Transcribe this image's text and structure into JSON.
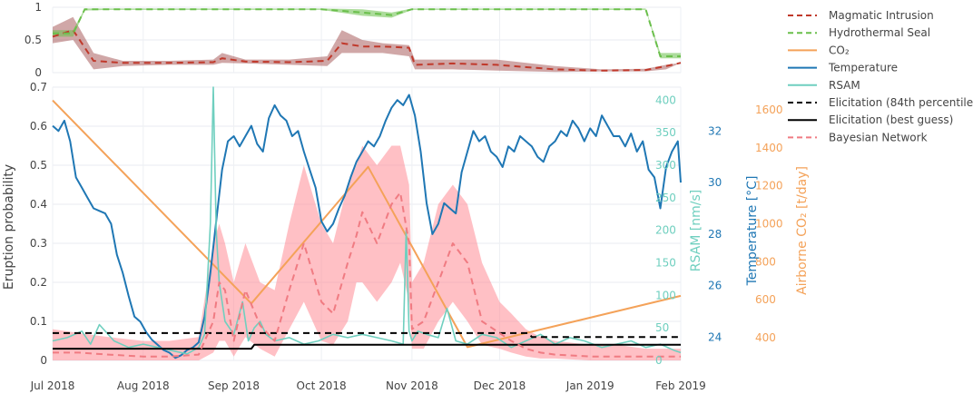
{
  "chart_data": [
    {
      "type": "line",
      "panel": "top",
      "ylim": [
        0,
        1
      ],
      "yticks": [
        "0",
        "0.5",
        "1"
      ],
      "series": [
        {
          "name": "Magmatic Intrusion",
          "color": "#c0392b",
          "dash": "dashed",
          "x": [
            "2018-07-01",
            "2018-07-08",
            "2018-07-15",
            "2018-07-25",
            "2018-08-10",
            "2018-08-25",
            "2018-08-28",
            "2018-09-05",
            "2018-09-20",
            "2018-10-03",
            "2018-10-08",
            "2018-10-15",
            "2018-10-22",
            "2018-10-31",
            "2018-11-02",
            "2018-11-15",
            "2018-11-30",
            "2018-12-20",
            "2019-01-05",
            "2019-01-20",
            "2019-01-27",
            "2019-02-01"
          ],
          "y": [
            0.55,
            0.65,
            0.18,
            0.15,
            0.15,
            0.16,
            0.22,
            0.17,
            0.16,
            0.18,
            0.45,
            0.4,
            0.4,
            0.38,
            0.12,
            0.14,
            0.12,
            0.05,
            0.03,
            0.04,
            0.1,
            0.15
          ],
          "band_low": [
            0.45,
            0.5,
            0.05,
            0.1,
            0.12,
            0.12,
            0.15,
            0.14,
            0.12,
            0.1,
            0.3,
            0.3,
            0.3,
            0.25,
            0.05,
            0.05,
            0.03,
            0.01,
            0.02,
            0.02,
            0.05,
            0.15
          ],
          "band_high": [
            0.7,
            0.85,
            0.3,
            0.18,
            0.18,
            0.2,
            0.3,
            0.2,
            0.2,
            0.25,
            0.65,
            0.5,
            0.45,
            0.42,
            0.2,
            0.2,
            0.2,
            0.1,
            0.05,
            0.06,
            0.12,
            0.15
          ]
        },
        {
          "name": "Hydrothermal Seal",
          "color": "#6abf4b",
          "dash": "dashed",
          "x": [
            "2018-07-01",
            "2018-07-08",
            "2018-07-12",
            "2018-07-20",
            "2018-09-01",
            "2018-10-01",
            "2018-10-15",
            "2018-10-25",
            "2018-11-01",
            "2018-12-01",
            "2019-01-20",
            "2019-01-25",
            "2019-02-01"
          ],
          "y": [
            0.6,
            0.6,
            0.97,
            0.97,
            0.97,
            0.97,
            0.92,
            0.88,
            0.97,
            0.97,
            0.97,
            0.25,
            0.25
          ],
          "band_low": [
            0.55,
            0.55,
            0.95,
            0.96,
            0.96,
            0.96,
            0.87,
            0.84,
            0.96,
            0.96,
            0.96,
            0.22,
            0.22
          ],
          "band_high": [
            0.65,
            0.65,
            0.98,
            0.98,
            0.98,
            0.98,
            0.97,
            0.92,
            0.98,
            0.98,
            0.98,
            0.3,
            0.3
          ]
        }
      ]
    },
    {
      "type": "line",
      "panel": "bottom",
      "xlim": [
        "2018-07-01",
        "2019-02-01"
      ],
      "xticks": [
        "Jul 2018",
        "Aug 2018",
        "Sep 2018",
        "Oct 2018",
        "Nov 2018",
        "Dec 2018",
        "Jan 2019",
        "Feb 2019"
      ],
      "ylabel": "Eruption probability",
      "ylim": [
        0,
        0.7
      ],
      "yticks": [
        "0",
        "0.1",
        "0.2",
        "0.3",
        "0.4",
        "0.5",
        "0.6",
        "0.7"
      ],
      "rsam_axis": {
        "label": "RSAM [nm/s]",
        "ylim": [
          0,
          420
        ],
        "ticks": [
          "0",
          "50",
          "100",
          "150",
          "200",
          "250",
          "300",
          "350",
          "400"
        ]
      },
      "temp_axis": {
        "label": "Temperature [°C]",
        "ylim": [
          23.1,
          33.7
        ],
        "ticks": [
          "24",
          "26",
          "28",
          "30",
          "32"
        ]
      },
      "co2_axis": {
        "label": "Airborne CO₂ [t/day]",
        "ylim": [
          280,
          1720
        ],
        "ticks": [
          "400",
          "600",
          "800",
          "1000",
          "1200",
          "1400",
          "1600"
        ]
      },
      "series": [
        {
          "name": "CO₂",
          "color": "#f4a259",
          "axis": "co2",
          "x": [
            "2018-07-01",
            "2018-09-07",
            "2018-10-17",
            "2018-11-20",
            "2019-02-01"
          ],
          "y": [
            1650,
            580,
            1300,
            350,
            620
          ]
        },
        {
          "name": "Temperature",
          "color": "#1f77b4",
          "axis": "temp",
          "x": [
            "2018-07-01",
            "2018-07-03",
            "2018-07-05",
            "2018-07-07",
            "2018-07-09",
            "2018-07-11",
            "2018-07-13",
            "2018-07-15",
            "2018-07-17",
            "2018-07-19",
            "2018-07-21",
            "2018-07-23",
            "2018-07-25",
            "2018-07-27",
            "2018-07-29",
            "2018-07-31",
            "2018-08-02",
            "2018-08-04",
            "2018-08-06",
            "2018-08-08",
            "2018-08-10",
            "2018-08-12",
            "2018-08-14",
            "2018-08-16",
            "2018-08-18",
            "2018-08-20",
            "2018-08-22",
            "2018-08-24",
            "2018-08-26",
            "2018-08-28",
            "2018-08-30",
            "2018-09-01",
            "2018-09-03",
            "2018-09-05",
            "2018-09-07",
            "2018-09-09",
            "2018-09-11",
            "2018-09-13",
            "2018-09-15",
            "2018-09-17",
            "2018-09-19",
            "2018-09-21",
            "2018-09-23",
            "2018-09-25",
            "2018-09-27",
            "2018-09-29",
            "2018-10-01",
            "2018-10-03",
            "2018-10-05",
            "2018-10-07",
            "2018-10-09",
            "2018-10-11",
            "2018-10-13",
            "2018-10-15",
            "2018-10-17",
            "2018-10-19",
            "2018-10-21",
            "2018-10-23",
            "2018-10-25",
            "2018-10-27",
            "2018-10-29",
            "2018-10-31",
            "2018-11-02",
            "2018-11-04",
            "2018-11-06",
            "2018-11-08",
            "2018-11-10",
            "2018-11-12",
            "2018-11-14",
            "2018-11-16",
            "2018-11-18",
            "2018-11-20",
            "2018-11-22",
            "2018-11-24",
            "2018-11-26",
            "2018-11-28",
            "2018-11-30",
            "2018-12-02",
            "2018-12-04",
            "2018-12-06",
            "2018-12-08",
            "2018-12-10",
            "2018-12-12",
            "2018-12-14",
            "2018-12-16",
            "2018-12-18",
            "2018-12-20",
            "2018-12-22",
            "2018-12-24",
            "2018-12-26",
            "2018-12-28",
            "2018-12-30",
            "2019-01-01",
            "2019-01-03",
            "2019-01-05",
            "2019-01-07",
            "2019-01-09",
            "2019-01-11",
            "2019-01-13",
            "2019-01-15",
            "2019-01-17",
            "2019-01-19",
            "2019-01-21",
            "2019-01-23",
            "2019-01-25",
            "2019-01-27",
            "2019-01-29",
            "2019-01-31",
            "2019-02-01"
          ],
          "y": [
            32.2,
            32,
            32.4,
            31.6,
            30.2,
            29.8,
            29.4,
            29,
            28.9,
            28.8,
            28.4,
            27.2,
            26.5,
            25.6,
            24.8,
            24.6,
            24.2,
            23.9,
            23.7,
            23.5,
            23.4,
            23.2,
            23.3,
            23.5,
            23.6,
            23.8,
            24.8,
            26.5,
            28.5,
            30.5,
            31.6,
            31.8,
            31.4,
            31.8,
            32.2,
            31.5,
            31.2,
            32.5,
            33.0,
            32.6,
            32.4,
            31.8,
            32.0,
            31.2,
            30.5,
            29.8,
            28.5,
            28.1,
            28.4,
            29.0,
            29.5,
            30.2,
            30.8,
            31.2,
            31.6,
            31.4,
            31.8,
            32.4,
            32.9,
            33.2,
            33.0,
            33.4,
            32.6,
            31.2,
            29.2,
            28.0,
            28.4,
            29.2,
            29.0,
            28.8,
            30.4,
            31.2,
            32.0,
            31.6,
            31.8,
            31.2,
            31.0,
            30.6,
            31.4,
            31.2,
            31.8,
            31.6,
            31.4,
            31.0,
            30.8,
            31.4,
            31.6,
            32.0,
            31.8,
            32.4,
            32.1,
            31.6,
            32.1,
            31.8,
            32.6,
            32.2,
            31.8,
            31.8,
            31.4,
            31.9,
            31.2,
            31.6,
            30.5,
            30.2,
            29.0,
            30.6,
            31.2,
            31.6,
            30.0
          ]
        },
        {
          "name": "RSAM",
          "color": "#6fcfbf",
          "axis": "rsam",
          "x": [
            "2018-07-01",
            "2018-07-06",
            "2018-07-11",
            "2018-07-14",
            "2018-07-17",
            "2018-07-22",
            "2018-07-27",
            "2018-08-01",
            "2018-08-06",
            "2018-08-11",
            "2018-08-16",
            "2018-08-20",
            "2018-08-22",
            "2018-08-24",
            "2018-08-25",
            "2018-08-26",
            "2018-08-27",
            "2018-08-29",
            "2018-09-01",
            "2018-09-04",
            "2018-09-06",
            "2018-09-08",
            "2018-09-10",
            "2018-09-12",
            "2018-09-15",
            "2018-09-20",
            "2018-09-25",
            "2018-09-30",
            "2018-10-05",
            "2018-10-10",
            "2018-10-15",
            "2018-10-20",
            "2018-10-25",
            "2018-10-29",
            "2018-10-30",
            "2018-10-31",
            "2018-11-01",
            "2018-11-03",
            "2018-11-06",
            "2018-11-10",
            "2018-11-13",
            "2018-11-16",
            "2018-11-20",
            "2018-11-25",
            "2018-11-30",
            "2018-12-05",
            "2018-12-10",
            "2018-12-15",
            "2018-12-20",
            "2018-12-25",
            "2018-12-30",
            "2019-01-05",
            "2019-01-10",
            "2019-01-15",
            "2019-01-20",
            "2019-01-25",
            "2019-01-30",
            "2019-02-01"
          ],
          "y": [
            30,
            35,
            45,
            25,
            55,
            30,
            20,
            25,
            20,
            15,
            10,
            20,
            40,
            210,
            420,
            200,
            120,
            60,
            40,
            90,
            30,
            50,
            60,
            40,
            30,
            35,
            25,
            30,
            40,
            35,
            40,
            35,
            30,
            25,
            200,
            45,
            30,
            45,
            40,
            35,
            80,
            30,
            25,
            40,
            35,
            20,
            30,
            40,
            25,
            35,
            30,
            20,
            25,
            30,
            20,
            25,
            15,
            12
          ]
        },
        {
          "name": "Elicitation (84th percentile)",
          "color": "#000000",
          "dash": "dashed",
          "x": [
            "2018-07-01",
            "2018-12-11",
            "2018-12-12",
            "2019-02-01"
          ],
          "y": [
            0.07,
            0.07,
            0.06,
            0.06
          ]
        },
        {
          "name": "Elicitation (best guess)",
          "color": "#000000",
          "x": [
            "2018-07-01",
            "2018-09-07",
            "2018-09-08",
            "2019-02-01"
          ],
          "y": [
            0.03,
            0.03,
            0.04,
            0.04
          ]
        },
        {
          "name": "Bayesian Network",
          "color": "#f07b82",
          "dash": "dashed",
          "x": [
            "2018-07-01",
            "2018-07-10",
            "2018-07-20",
            "2018-08-01",
            "2018-08-10",
            "2018-08-20",
            "2018-08-25",
            "2018-08-27",
            "2018-08-29",
            "2018-09-01",
            "2018-09-05",
            "2018-09-10",
            "2018-09-15",
            "2018-09-20",
            "2018-09-25",
            "2018-10-01",
            "2018-10-05",
            "2018-10-10",
            "2018-10-13",
            "2018-10-15",
            "2018-10-20",
            "2018-10-25",
            "2018-10-28",
            "2018-10-31",
            "2018-11-01",
            "2018-11-05",
            "2018-11-10",
            "2018-11-15",
            "2018-11-20",
            "2018-11-25",
            "2018-12-01",
            "2018-12-05",
            "2018-12-10",
            "2018-12-15",
            "2018-12-20",
            "2019-01-01",
            "2019-01-10",
            "2019-01-20",
            "2019-02-01"
          ],
          "y": [
            0.02,
            0.02,
            0.015,
            0.01,
            0.01,
            0.015,
            0.1,
            0.2,
            0.18,
            0.05,
            0.18,
            0.09,
            0.05,
            0.18,
            0.3,
            0.15,
            0.12,
            0.25,
            0.32,
            0.38,
            0.3,
            0.4,
            0.43,
            0.3,
            0.08,
            0.1,
            0.2,
            0.3,
            0.25,
            0.1,
            0.07,
            0.05,
            0.03,
            0.02,
            0.015,
            0.01,
            0.01,
            0.01,
            0.01
          ],
          "band_low": [
            0,
            0,
            0,
            0,
            0,
            0,
            0.02,
            0.05,
            0.05,
            0.01,
            0.06,
            0.03,
            0.01,
            0.08,
            0.15,
            0.05,
            0.04,
            0.1,
            0.2,
            0.2,
            0.15,
            0.2,
            0.25,
            0.15,
            0.03,
            0.03,
            0.1,
            0.15,
            0.1,
            0.04,
            0.03,
            0.02,
            0.01,
            0.005,
            0.005,
            0,
            0,
            0,
            0
          ],
          "band_high": [
            0.08,
            0.07,
            0.06,
            0.05,
            0.05,
            0.06,
            0.3,
            0.35,
            0.3,
            0.2,
            0.3,
            0.2,
            0.18,
            0.35,
            0.5,
            0.35,
            0.3,
            0.45,
            0.5,
            0.55,
            0.5,
            0.55,
            0.55,
            0.45,
            0.2,
            0.25,
            0.4,
            0.45,
            0.4,
            0.25,
            0.15,
            0.12,
            0.08,
            0.06,
            0.05,
            0.04,
            0.04,
            0.03,
            0.03
          ]
        }
      ]
    }
  ]
}
